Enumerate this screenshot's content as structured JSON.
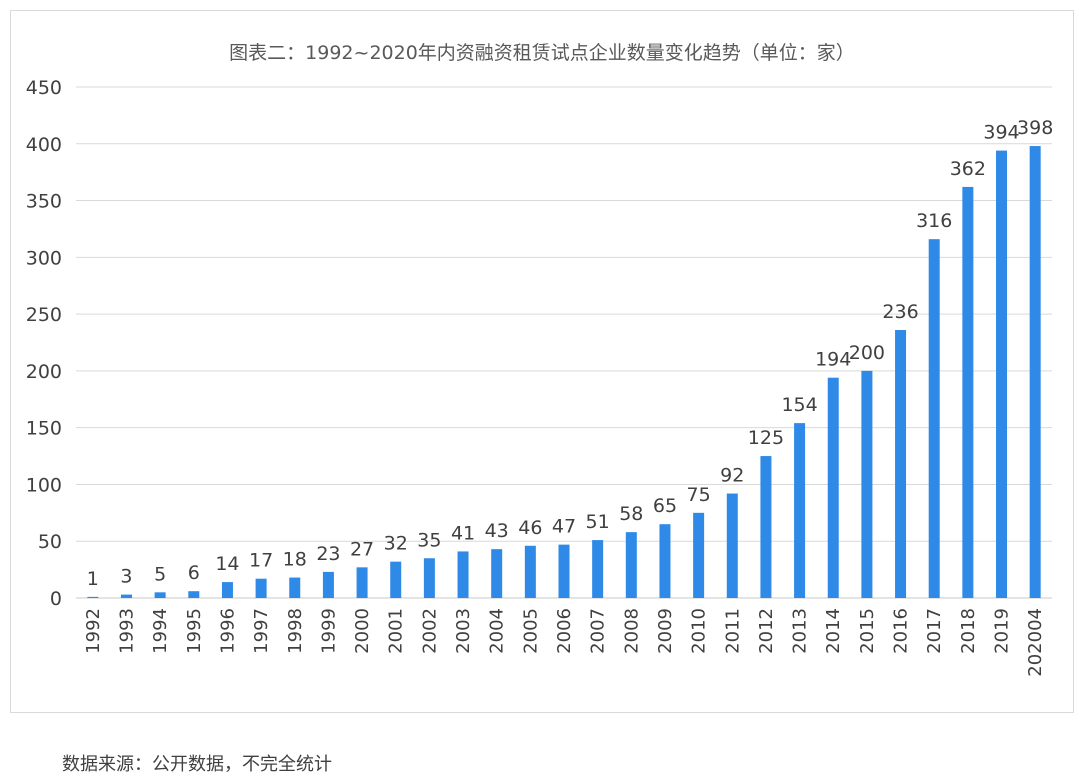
{
  "chart_data": {
    "type": "bar",
    "title": "图表二：1992~2020年内资融资租赁试点企业数量变化趋势（单位：家）",
    "categories": [
      "1992",
      "1993",
      "1994",
      "1995",
      "1996",
      "1997",
      "1998",
      "1999",
      "2000",
      "2001",
      "2002",
      "2003",
      "2004",
      "2005",
      "2006",
      "2007",
      "2008",
      "2009",
      "2010",
      "2011",
      "2012",
      "2013",
      "2014",
      "2015",
      "2016",
      "2017",
      "2018",
      "2019",
      "202004"
    ],
    "values": [
      1,
      3,
      5,
      6,
      14,
      17,
      18,
      23,
      27,
      32,
      35,
      41,
      43,
      46,
      47,
      51,
      58,
      65,
      75,
      92,
      125,
      154,
      194,
      200,
      236,
      316,
      362,
      394,
      398
    ],
    "yticks": [
      0,
      50,
      100,
      150,
      200,
      250,
      300,
      350,
      400,
      450
    ],
    "ylim": [
      0,
      450
    ],
    "grid": true,
    "legend": "none",
    "bar_color": "#2e8ae6"
  },
  "footer": {
    "source": "数据来源：公开数据，不完全统计"
  }
}
